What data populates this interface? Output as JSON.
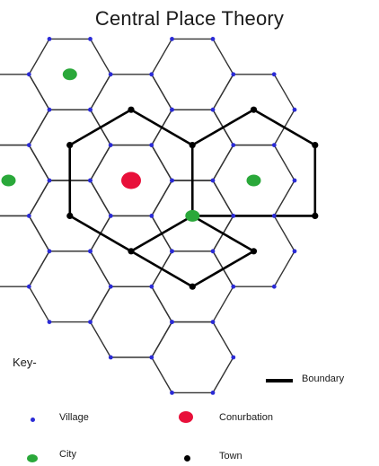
{
  "title": "Central Place Theory",
  "key": {
    "heading": "Key-",
    "boundary": "Boundary",
    "village": "Village",
    "conurbation": "Conurbation",
    "city": "City",
    "town": "Town"
  },
  "colors": {
    "hexagon_stroke": "#333333",
    "village": "#2b2bd6",
    "city": "#2aa83a",
    "conurbation": "#e8103a",
    "town": "#000000",
    "boundary": "#000000"
  },
  "diagram": {
    "hex_cells": [
      {
        "q": 0,
        "r": 0
      },
      {
        "q": 0,
        "r": -1
      },
      {
        "q": 1,
        "r": -1
      },
      {
        "q": 1,
        "r": 0
      },
      {
        "q": 0,
        "r": 1
      },
      {
        "q": -1,
        "r": 1
      },
      {
        "q": -1,
        "r": 0
      },
      {
        "q": -1,
        "r": -1
      },
      {
        "q": 1,
        "r": -2
      },
      {
        "q": 2,
        "r": -2
      },
      {
        "q": 2,
        "r": -1
      },
      {
        "q": 2,
        "r": 0
      },
      {
        "q": 1,
        "r": 1
      },
      {
        "q": 0,
        "r": 2
      },
      {
        "q": -1,
        "r": 2
      },
      {
        "q": -2,
        "r": 2
      },
      {
        "q": -2,
        "r": 1
      },
      {
        "q": -2,
        "r": 0
      },
      {
        "q": 1,
        "r": 2
      }
    ],
    "cities": [
      {
        "q": -1,
        "r": -1
      },
      {
        "q": 2,
        "r": -1
      },
      {
        "q": -2,
        "r": 1
      },
      {
        "q": 1,
        "r": 0
      }
    ],
    "conurbation": {
      "q": 0,
      "r": 0
    }
  }
}
